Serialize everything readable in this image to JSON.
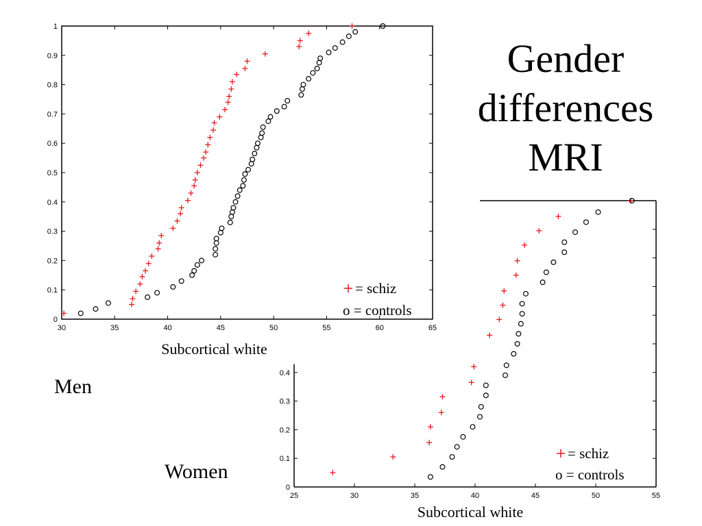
{
  "slide": {
    "title_lines": [
      "Gender",
      "differences",
      "MRI"
    ],
    "men_label": "Men",
    "women_label": "Women"
  },
  "colors": {
    "schiz": "#e8191a",
    "controls": "#000000",
    "axes": "#000000"
  },
  "chart_data": [
    {
      "id": "men",
      "type": "scatter",
      "xlabel": "Subcortical white",
      "ylabel": "",
      "xlim": [
        30,
        65
      ],
      "ylim": [
        0,
        1
      ],
      "xticks": [
        30,
        35,
        40,
        45,
        50,
        55,
        60,
        65
      ],
      "yticks": [
        0,
        0.1,
        0.2,
        0.3,
        0.4,
        0.5,
        0.6,
        0.7,
        0.8,
        0.9,
        1
      ],
      "grid": false,
      "legend_position": "bottom-right",
      "series": [
        {
          "name": "+ = schiz",
          "marker": "plus",
          "points": [
            [
              30.2,
              0.02
            ],
            [
              36.6,
              0.05
            ],
            [
              36.7,
              0.07
            ],
            [
              37.0,
              0.095
            ],
            [
              37.4,
              0.12
            ],
            [
              37.6,
              0.145
            ],
            [
              37.9,
              0.165
            ],
            [
              38.2,
              0.19
            ],
            [
              38.5,
              0.215
            ],
            [
              39.1,
              0.24
            ],
            [
              39.2,
              0.26
            ],
            [
              39.4,
              0.285
            ],
            [
              40.5,
              0.31
            ],
            [
              40.9,
              0.335
            ],
            [
              41.2,
              0.36
            ],
            [
              41.3,
              0.38
            ],
            [
              41.9,
              0.405
            ],
            [
              42.2,
              0.43
            ],
            [
              42.5,
              0.455
            ],
            [
              42.6,
              0.475
            ],
            [
              42.8,
              0.5
            ],
            [
              43.1,
              0.525
            ],
            [
              43.4,
              0.55
            ],
            [
              43.6,
              0.57
            ],
            [
              43.8,
              0.595
            ],
            [
              44.0,
              0.62
            ],
            [
              44.3,
              0.645
            ],
            [
              44.4,
              0.67
            ],
            [
              44.9,
              0.69
            ],
            [
              45.4,
              0.715
            ],
            [
              45.7,
              0.74
            ],
            [
              45.8,
              0.76
            ],
            [
              46.0,
              0.785
            ],
            [
              46.1,
              0.81
            ],
            [
              46.5,
              0.835
            ],
            [
              47.3,
              0.855
            ],
            [
              47.5,
              0.88
            ],
            [
              49.2,
              0.905
            ],
            [
              52.4,
              0.93
            ],
            [
              52.5,
              0.95
            ],
            [
              53.3,
              0.975
            ],
            [
              57.4,
              1.0
            ]
          ]
        },
        {
          "name": "o = controls",
          "marker": "circle",
          "points": [
            [
              31.8,
              0.02
            ],
            [
              33.2,
              0.035
            ],
            [
              34.4,
              0.055
            ],
            [
              38.1,
              0.075
            ],
            [
              39.0,
              0.09
            ],
            [
              40.5,
              0.11
            ],
            [
              41.3,
              0.13
            ],
            [
              42.3,
              0.15
            ],
            [
              42.5,
              0.165
            ],
            [
              42.8,
              0.185
            ],
            [
              43.2,
              0.2
            ],
            [
              44.5,
              0.22
            ],
            [
              44.5,
              0.24
            ],
            [
              44.6,
              0.26
            ],
            [
              44.6,
              0.275
            ],
            [
              45.0,
              0.295
            ],
            [
              45.1,
              0.31
            ],
            [
              45.9,
              0.33
            ],
            [
              46.0,
              0.35
            ],
            [
              46.1,
              0.365
            ],
            [
              46.2,
              0.38
            ],
            [
              46.4,
              0.4
            ],
            [
              46.6,
              0.42
            ],
            [
              46.8,
              0.44
            ],
            [
              47.1,
              0.455
            ],
            [
              47.2,
              0.475
            ],
            [
              47.3,
              0.495
            ],
            [
              47.6,
              0.51
            ],
            [
              47.9,
              0.53
            ],
            [
              48.0,
              0.545
            ],
            [
              48.2,
              0.565
            ],
            [
              48.4,
              0.585
            ],
            [
              48.5,
              0.6
            ],
            [
              48.8,
              0.62
            ],
            [
              48.9,
              0.635
            ],
            [
              49.0,
              0.655
            ],
            [
              49.5,
              0.675
            ],
            [
              49.7,
              0.69
            ],
            [
              50.3,
              0.71
            ],
            [
              51.0,
              0.725
            ],
            [
              51.3,
              0.745
            ],
            [
              52.6,
              0.765
            ],
            [
              52.7,
              0.785
            ],
            [
              52.8,
              0.8
            ],
            [
              53.3,
              0.82
            ],
            [
              53.7,
              0.84
            ],
            [
              54.1,
              0.855
            ],
            [
              54.3,
              0.875
            ],
            [
              54.4,
              0.89
            ],
            [
              55.2,
              0.91
            ],
            [
              55.8,
              0.925
            ],
            [
              56.5,
              0.945
            ],
            [
              57.1,
              0.965
            ],
            [
              57.7,
              0.98
            ],
            [
              60.3,
              1.0
            ]
          ]
        }
      ]
    },
    {
      "id": "women",
      "type": "scatter",
      "xlabel": "Subcortical white",
      "ylabel": "",
      "xlim": [
        25,
        55
      ],
      "ylim": [
        0,
        1
      ],
      "xticks": [
        25,
        30,
        35,
        40,
        45,
        50,
        55
      ],
      "yticks": [
        0,
        0.1,
        0.2,
        0.3,
        0.4
      ],
      "grid": false,
      "legend_position": "bottom-right",
      "series": [
        {
          "name": "+ = schiz",
          "marker": "plus",
          "points": [
            [
              28.2,
              0.05
            ],
            [
              33.2,
              0.105
            ],
            [
              36.2,
              0.155
            ],
            [
              36.3,
              0.21
            ],
            [
              37.2,
              0.26
            ],
            [
              37.3,
              0.315
            ],
            [
              39.7,
              0.365
            ],
            [
              39.9,
              0.42
            ],
            [
              41.2,
              0.53
            ],
            [
              42.0,
              0.585
            ],
            [
              42.3,
              0.635
            ],
            [
              42.4,
              0.685
            ],
            [
              43.4,
              0.74
            ],
            [
              43.5,
              0.79
            ],
            [
              44.1,
              0.845
            ],
            [
              45.3,
              0.895
            ],
            [
              46.9,
              0.945
            ],
            [
              52.9,
              1.0
            ]
          ]
        },
        {
          "name": "o = controls",
          "marker": "circle",
          "points": [
            [
              36.3,
              0.035
            ],
            [
              37.3,
              0.07
            ],
            [
              38.1,
              0.105
            ],
            [
              38.5,
              0.14
            ],
            [
              39.0,
              0.175
            ],
            [
              39.8,
              0.21
            ],
            [
              40.4,
              0.245
            ],
            [
              40.5,
              0.28
            ],
            [
              40.9,
              0.32
            ],
            [
              40.9,
              0.355
            ],
            [
              42.5,
              0.39
            ],
            [
              42.6,
              0.425
            ],
            [
              43.2,
              0.465
            ],
            [
              43.5,
              0.5
            ],
            [
              43.6,
              0.535
            ],
            [
              43.8,
              0.57
            ],
            [
              43.9,
              0.605
            ],
            [
              43.9,
              0.64
            ],
            [
              44.2,
              0.675
            ],
            [
              45.6,
              0.715
            ],
            [
              45.9,
              0.75
            ],
            [
              46.5,
              0.785
            ],
            [
              47.4,
              0.82
            ],
            [
              47.4,
              0.855
            ],
            [
              48.3,
              0.89
            ],
            [
              49.2,
              0.925
            ],
            [
              50.2,
              0.96
            ],
            [
              53.0,
              1.0
            ]
          ]
        }
      ]
    }
  ]
}
